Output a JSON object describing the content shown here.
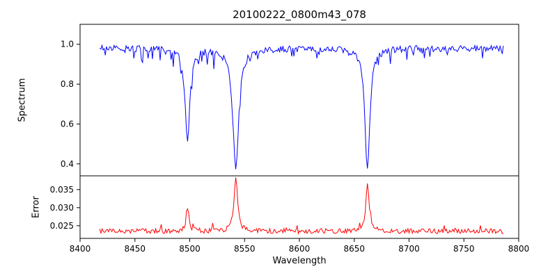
{
  "chart_data": {
    "type": "line",
    "title": "20100222_0800m43_078",
    "xlabel": "Wavelength",
    "xlim": [
      8400,
      8800
    ],
    "xticks": [
      8400,
      8450,
      8500,
      8550,
      8600,
      8650,
      8700,
      8750,
      8800
    ],
    "x_start": 8418,
    "x_end": 8786,
    "x_step": 1,
    "grid": false,
    "legend": "none",
    "panels": [
      {
        "name": "spectrum",
        "ylabel": "Spectrum",
        "color": "#0000ff",
        "ylim": [
          0.34,
          1.1
        ],
        "yticks": [
          0.4,
          0.6,
          0.8,
          1.0
        ],
        "tick_decimals": 1,
        "continuum": 0.98,
        "noise": 0.016,
        "dip_chance": 0.1,
        "dip_amp": 0.07,
        "absorption_lines": [
          {
            "center": 8498,
            "depth": 0.46,
            "width": 2.6,
            "min_value": 0.52
          },
          {
            "center": 8542,
            "depth": 0.61,
            "width": 3.2,
            "min_value": 0.37
          },
          {
            "center": 8662,
            "depth": 0.6,
            "width": 2.8,
            "min_value": 0.38
          }
        ]
      },
      {
        "name": "error",
        "ylabel": "Error",
        "color": "#ff0000",
        "ylim": [
          0.0215,
          0.0388
        ],
        "yticks": [
          0.025,
          0.03,
          0.035
        ],
        "tick_decimals": 3,
        "baseline": 0.0235,
        "noise": 0.0007,
        "spike_chance": 0.06,
        "spike_amp": 0.0015,
        "error_peaks": [
          {
            "center": 8498,
            "amp": 0.0062,
            "width": 1.6,
            "peak_value": 0.03
          },
          {
            "center": 8542,
            "amp": 0.0148,
            "width": 1.9,
            "peak_value": 0.038
          },
          {
            "center": 8662,
            "amp": 0.0138,
            "width": 1.7,
            "peak_value": 0.037
          }
        ]
      }
    ]
  }
}
